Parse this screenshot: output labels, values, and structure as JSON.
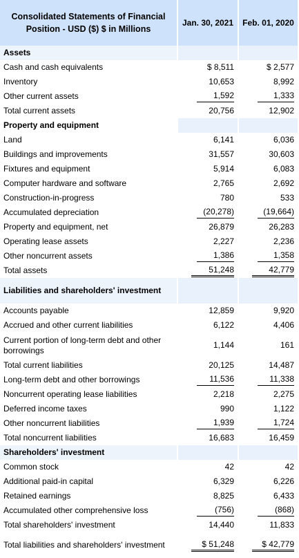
{
  "header": {
    "title": "Consolidated Statements of Financial Position - USD ($) $ in Millions",
    "col1": "Jan. 30, 2021",
    "col2": "Feb. 01, 2020"
  },
  "rows": [
    {
      "label": "Assets",
      "section": true
    },
    {
      "label": "Cash and cash equivalents",
      "v1": "$ 8,511",
      "v2": "$ 2,577"
    },
    {
      "label": "Inventory",
      "v1": "10,653",
      "v2": "8,992"
    },
    {
      "label": "Other current assets",
      "v1": "1,592",
      "v2": "1,333"
    },
    {
      "label": "Total current assets",
      "v1": "20,756",
      "v2": "12,902"
    },
    {
      "label": "Property and equipment",
      "section": true
    },
    {
      "label": "Land",
      "v1": "6,141",
      "v2": "6,036"
    },
    {
      "label": "Buildings and improvements",
      "v1": "31,557",
      "v2": "30,603"
    },
    {
      "label": "Fixtures and equipment",
      "v1": "5,914",
      "v2": "6,083"
    },
    {
      "label": "Computer hardware and software",
      "v1": "2,765",
      "v2": "2,692"
    },
    {
      "label": "Construction-in-progress",
      "v1": "780",
      "v2": "533"
    },
    {
      "label": "Accumulated depreciation",
      "v1": "(20,278)",
      "v2": "(19,664)"
    },
    {
      "label": "Property and equipment, net",
      "v1": "26,879",
      "v2": "26,283"
    },
    {
      "label": "Operating lease assets",
      "v1": "2,227",
      "v2": "2,236"
    },
    {
      "label": "Other noncurrent assets",
      "v1": "1,386",
      "v2": "1,358"
    },
    {
      "label": "Total assets",
      "v1": "51,248",
      "v2": "42,779"
    },
    {
      "label": "Liabilities and shareholders' investment",
      "section": true,
      "tall": true
    },
    {
      "label": "Accounts payable",
      "v1": "12,859",
      "v2": "9,920"
    },
    {
      "label": "Accrued and other current liabilities",
      "v1": "6,122",
      "v2": "4,406"
    },
    {
      "label": "Current portion of long-term debt and other borrowings",
      "v1": "1,144",
      "v2": "161",
      "tall": true
    },
    {
      "label": "Total current liabilities",
      "v1": "20,125",
      "v2": "14,487"
    },
    {
      "label": "Long-term debt and other borrowings",
      "v1": "11,536",
      "v2": "11,338"
    },
    {
      "label": "Noncurrent operating lease liabilities",
      "v1": "2,218",
      "v2": "2,275"
    },
    {
      "label": "Deferred income taxes",
      "v1": "990",
      "v2": "1,122"
    },
    {
      "label": "Other noncurrent liabilities",
      "v1": "1,939",
      "v2": "1,724"
    },
    {
      "label": "Total noncurrent liabilities",
      "v1": "16,683",
      "v2": "16,459"
    },
    {
      "label": "Shareholders' investment",
      "section": true
    },
    {
      "label": "Common stock",
      "v1": "42",
      "v2": "42"
    },
    {
      "label": "Additional paid-in capital",
      "v1": "6,329",
      "v2": "6,226"
    },
    {
      "label": "Retained earnings",
      "v1": "8,825",
      "v2": "6,433"
    },
    {
      "label": "Accumulated other comprehensive loss",
      "v1": "(756)",
      "v2": "(868)"
    },
    {
      "label": "Total shareholders' investment",
      "v1": "14,440",
      "v2": "11,833"
    },
    {
      "label": "Total liabilities and shareholders' investment",
      "v1": "$ 51,248",
      "v2": "$ 42,779",
      "tall": true
    }
  ]
}
